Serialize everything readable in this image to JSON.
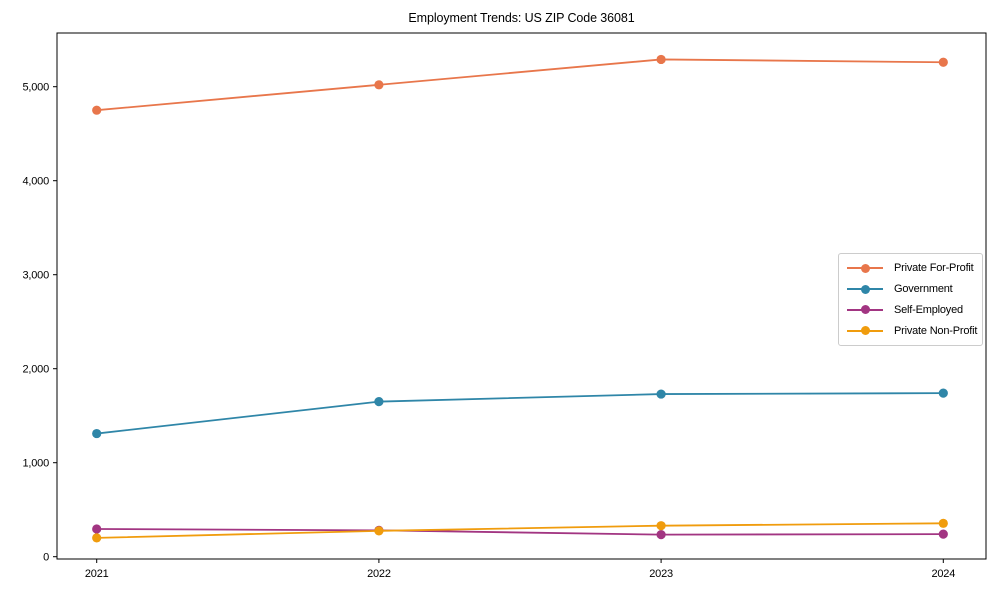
{
  "title": "Employment Trends: US ZIP Code 36081",
  "chart_data": {
    "type": "line",
    "x": [
      "2021",
      "2022",
      "2023",
      "2024"
    ],
    "series": [
      {
        "name": "Private For-Profit",
        "color": "#E8764B",
        "values": [
          4750,
          5020,
          5290,
          5260
        ]
      },
      {
        "name": "Government",
        "color": "#2F86A8",
        "values": [
          1310,
          1650,
          1730,
          1740
        ]
      },
      {
        "name": "Self-Employed",
        "color": "#A23582",
        "values": [
          295,
          280,
          235,
          240
        ]
      },
      {
        "name": "Private Non-Profit",
        "color": "#F09C0D",
        "values": [
          200,
          275,
          330,
          355
        ]
      }
    ],
    "title": "Employment Trends: US ZIP Code 36081",
    "xlabel": "",
    "ylabel": "",
    "ylim": [
      -25,
      5570
    ],
    "yticks": [
      0,
      1000,
      2000,
      3000,
      4000,
      5000
    ],
    "grid": false,
    "legend_position": "center right",
    "marker": "circle",
    "frame_color": "#000000"
  }
}
